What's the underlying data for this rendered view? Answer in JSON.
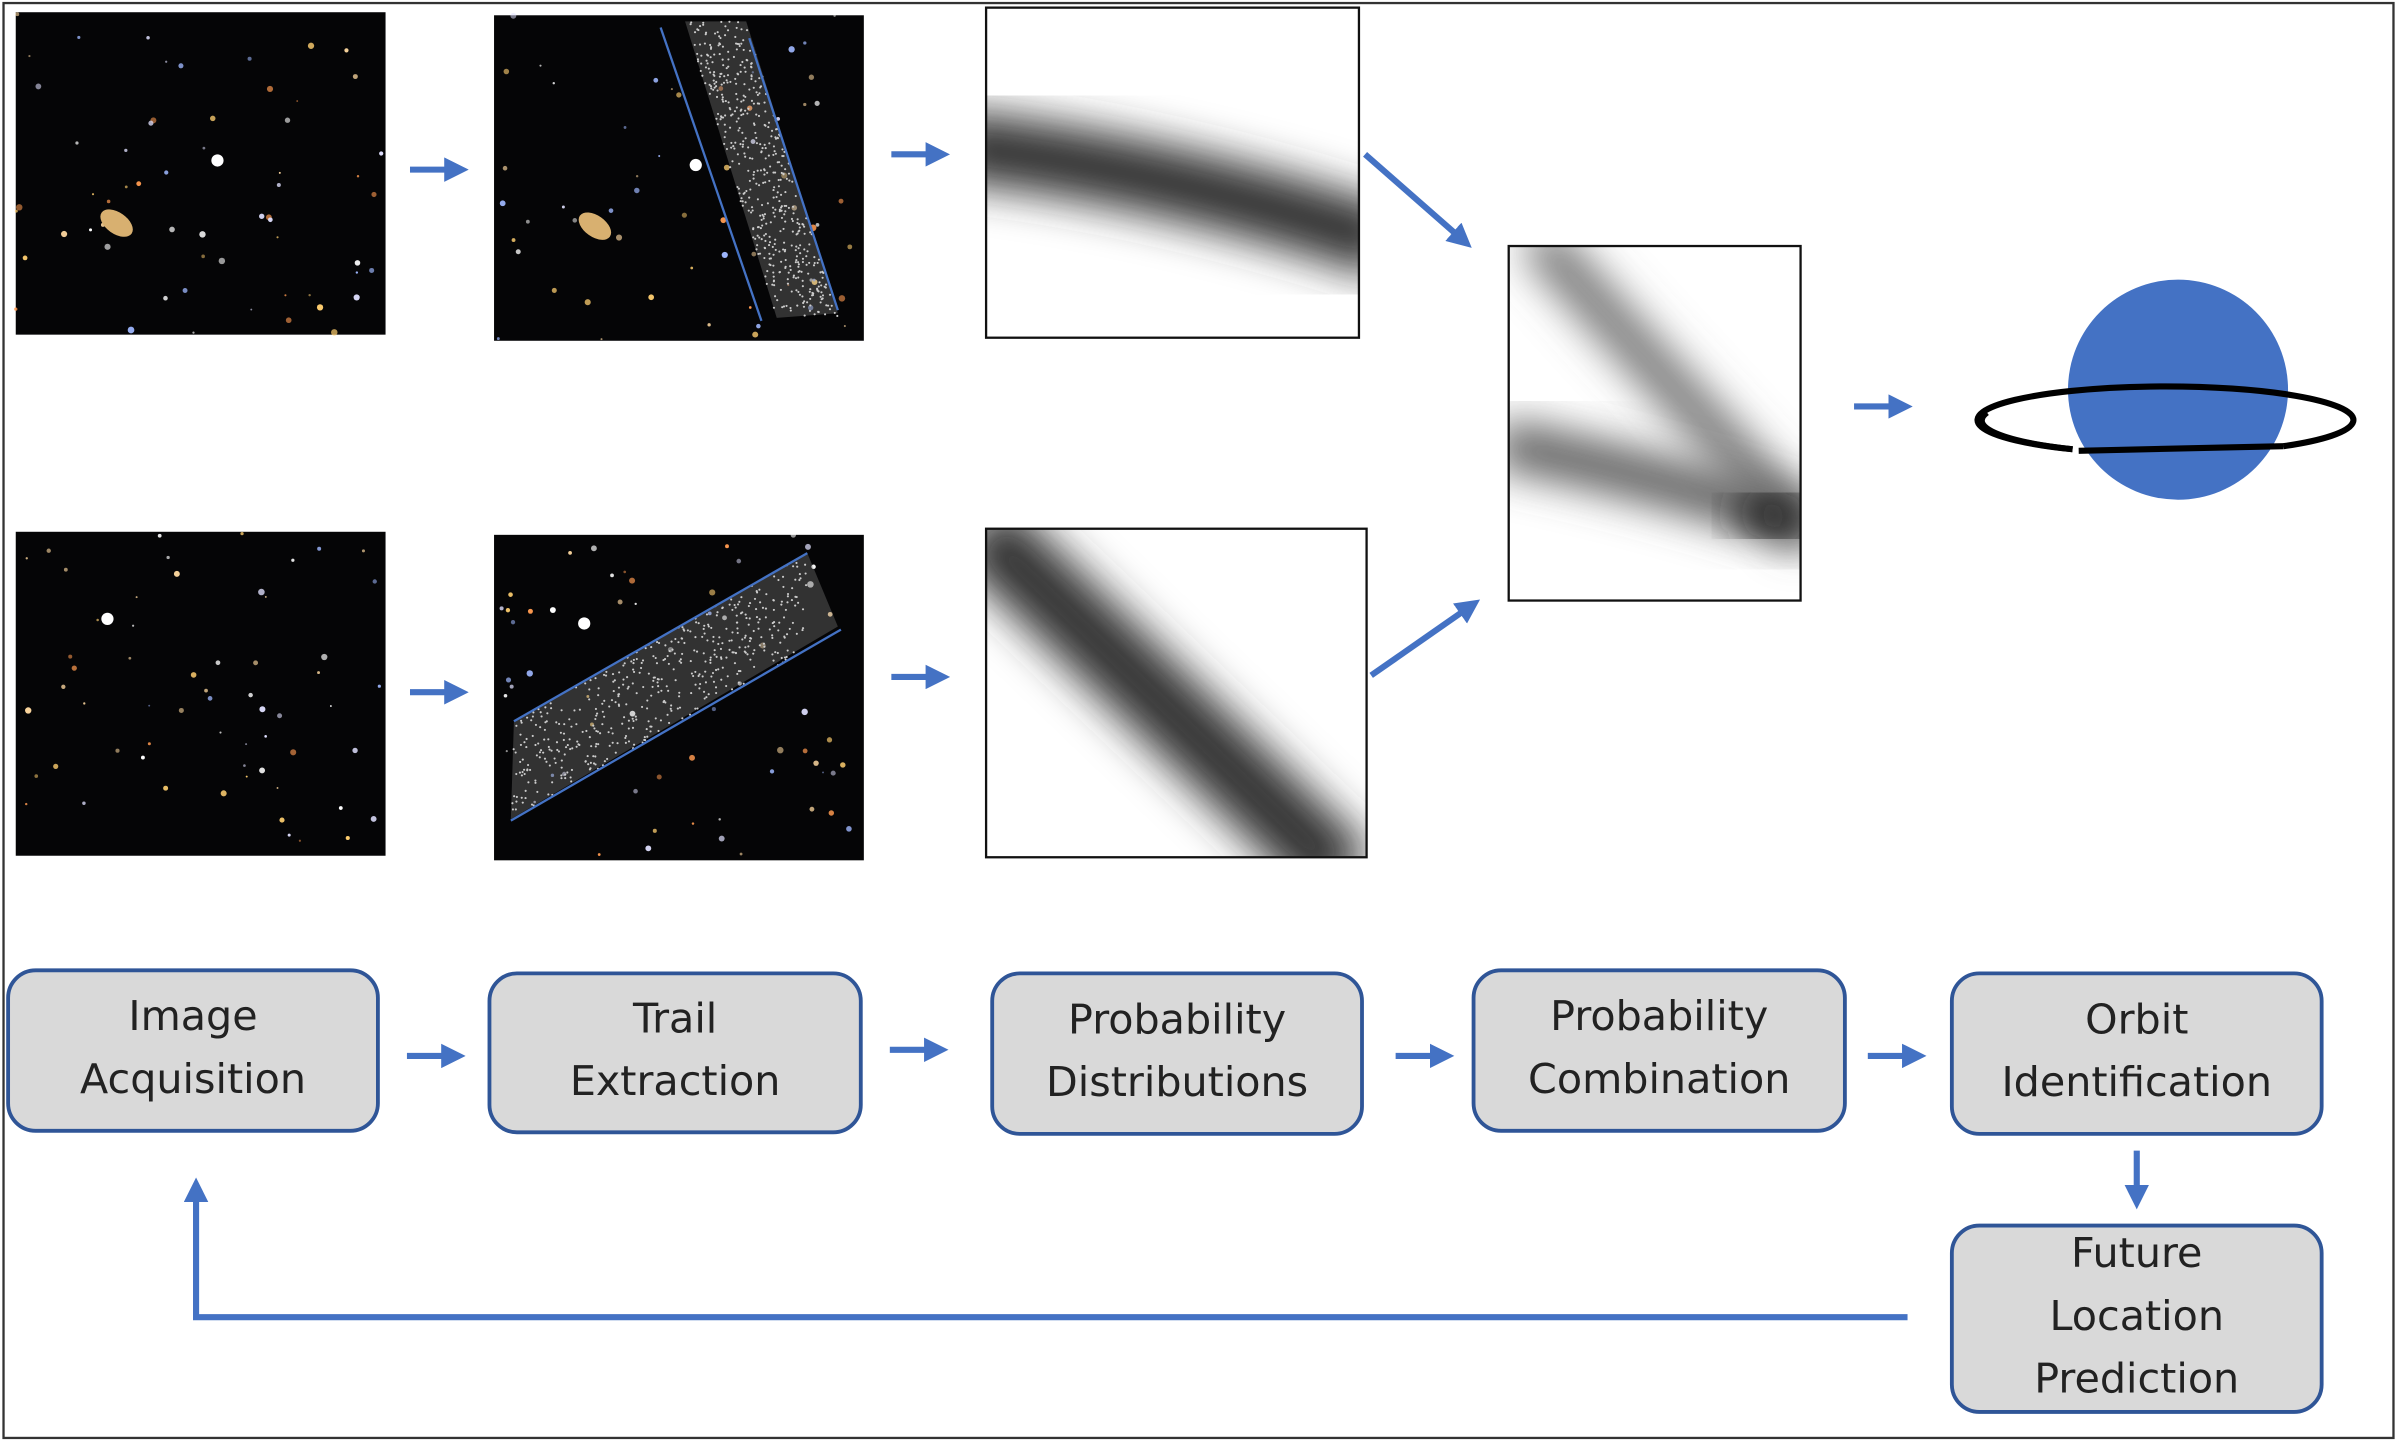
{
  "nodes": [
    {
      "lines": [
        "Image",
        "Acquisition"
      ]
    },
    {
      "lines": [
        "Trail",
        "Extraction"
      ]
    },
    {
      "lines": [
        "Probability",
        "Distributions"
      ]
    },
    {
      "lines": [
        "Probability",
        "Combination"
      ]
    },
    {
      "lines": [
        "Orbit",
        "Identification"
      ]
    },
    {
      "lines": [
        "Future",
        "Location",
        "Prediction"
      ]
    }
  ]
}
